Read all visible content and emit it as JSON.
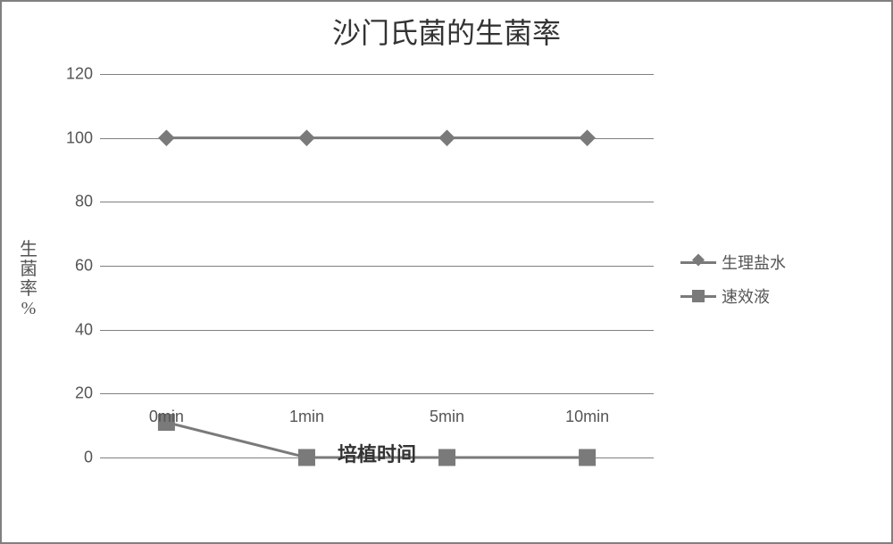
{
  "chart": {
    "type": "line",
    "title": "沙门氏菌的生菌率",
    "title_fontsize": 32,
    "background_color": "#ffffff",
    "border_color": "#808080",
    "gridline_color": "#808080",
    "text_color": "#555555",
    "y_axis": {
      "label": "生菌率%",
      "label_fontsize": 20,
      "min": 0,
      "max": 120,
      "tick_step": 20,
      "ticks": [
        0,
        20,
        40,
        60,
        80,
        100,
        120
      ],
      "tick_fontsize": 18
    },
    "x_axis": {
      "label": "培植时间",
      "label_fontsize": 22,
      "label_fontweight": "bold",
      "categories": [
        "0min",
        "1min",
        "5min",
        "10min"
      ],
      "tick_fontsize": 18
    },
    "series": [
      {
        "name": "生理盐水",
        "color": "#7a7a7a",
        "line_width": 3,
        "marker": "diamond",
        "marker_size": 12,
        "values": [
          100,
          100,
          100,
          100
        ]
      },
      {
        "name": "速效液",
        "color": "#7a7a7a",
        "line_width": 3,
        "marker": "square",
        "marker_size": 18,
        "values": [
          11,
          0,
          0,
          0
        ]
      }
    ]
  }
}
